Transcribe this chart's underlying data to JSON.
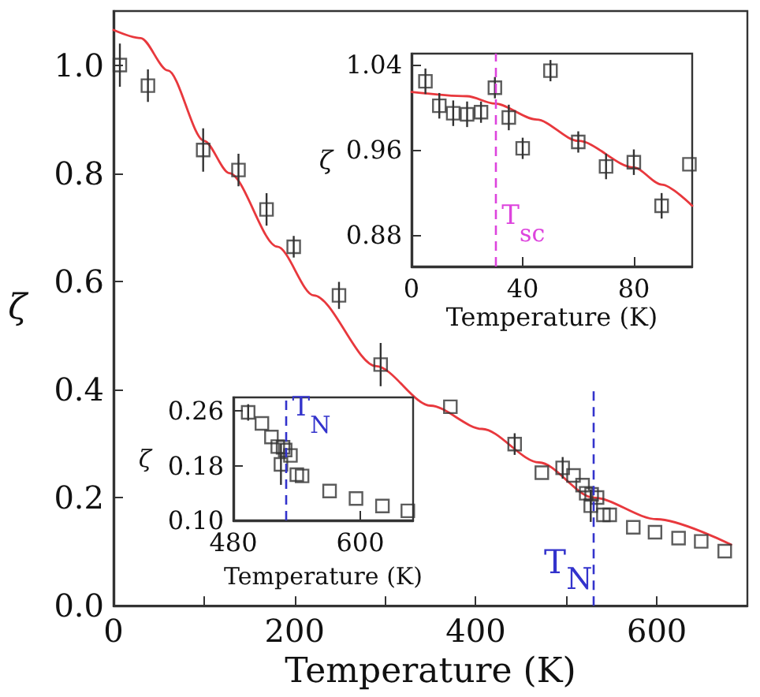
{
  "chart_data": [
    {
      "type": "scatter",
      "xlabel": "Temperature (K)",
      "ylabel": "ζ",
      "marker": "square",
      "grid": false,
      "xlim": [
        0,
        700
      ],
      "xticks": [
        0,
        {
          "value": 100,
          "label": null
        },
        200,
        {
          "value": 300,
          "label": null
        },
        400,
        {
          "value": 500,
          "label": null
        },
        600
      ],
      "ylim": [
        0,
        1.1
      ],
      "yticks": [
        {
          "value": 0,
          "label": "0.0"
        },
        {
          "value": 0.2,
          "label": "0.2"
        },
        {
          "value": 0.4,
          "label": "0.4"
        },
        {
          "value": 0.6,
          "label": "0.6"
        },
        {
          "value": 0.8,
          "label": "0.8"
        },
        {
          "value": 1.0,
          "label": "1.0"
        }
      ],
      "series": [
        {
          "color": "#333333",
          "x": [
            7,
            38,
            99,
            138,
            169,
            199,
            249,
            295,
            372,
            443,
            473,
            496,
            508,
            518,
            522,
            528,
            534,
            527,
            541,
            548,
            574,
            598,
            624,
            649,
            675
          ],
          "values": [
            1.0,
            0.962,
            0.843,
            0.806,
            0.733,
            0.664,
            0.574,
            0.446,
            0.368,
            0.299,
            0.246,
            0.255,
            0.241,
            0.223,
            0.208,
            0.206,
            0.2,
            0.185,
            0.168,
            0.168,
            0.145,
            0.136,
            0.125,
            0.119,
            0.101
          ],
          "errors": [
            0.04,
            0.03,
            0.04,
            0.03,
            0.03,
            0.02,
            0.025,
            0.04,
            null,
            0.02,
            null,
            0.02,
            null,
            null,
            null,
            null,
            null,
            0.03,
            null,
            null,
            null,
            null,
            null,
            null,
            null
          ]
        },
        {
          "type": "line",
          "marker": "none",
          "line_style": "solid",
          "color": "#e8383d",
          "x": [
            0,
            30,
            60,
            100,
            128,
            181,
            221,
            290,
            350,
            407,
            470,
            530,
            600,
            682
          ],
          "values": [
            1.065,
            1.05,
            0.99,
            0.86,
            0.8,
            0.664,
            0.574,
            0.443,
            0.37,
            0.327,
            0.265,
            0.2,
            0.16,
            0.113
          ]
        }
      ],
      "ref_lines": [
        {
          "axis": "x",
          "value": 530,
          "label": "T$_{N}$",
          "color": "#3333cc",
          "line_style": "dashed"
        }
      ]
    },
    {
      "type": "scatter",
      "xlabel": "Temperature (K)",
      "ylabel": "ζ",
      "marker": "square",
      "grid": false,
      "xlim": [
        0,
        101
      ],
      "xticks": [
        0,
        40,
        80
      ],
      "ylim": [
        0.85,
        1.05
      ],
      "yticks": [
        0.88,
        0.96,
        1.04
      ],
      "series": [
        {
          "color": "#333333",
          "x": [
            5,
            10,
            15,
            20,
            25,
            30,
            35,
            40,
            50,
            60,
            70,
            80,
            90,
            100
          ],
          "values": [
            1.024,
            1.001,
            0.994,
            0.993,
            0.995,
            1.018,
            0.99,
            0.961,
            1.034,
            0.967,
            0.944,
            0.948,
            0.907,
            0.946
          ],
          "errors": [
            0.012,
            0.012,
            0.012,
            0.012,
            0.01,
            0.01,
            0.012,
            0.01,
            0.01,
            0.01,
            0.012,
            0.012,
            0.012,
            null
          ]
        },
        {
          "type": "line",
          "marker": "none",
          "line_style": "solid",
          "color": "#e8383d",
          "x": [
            0,
            20,
            30,
            45,
            60,
            80,
            90,
            101
          ],
          "values": [
            1.014,
            1.01,
            1.003,
            0.988,
            0.968,
            0.943,
            0.927,
            0.907
          ]
        }
      ],
      "ref_lines": [
        {
          "axis": "x",
          "value": 30,
          "label": "T$_{sc}$",
          "color": "#dd44dd",
          "line_style": "dashed"
        }
      ]
    },
    {
      "type": "scatter",
      "xlabel": "Temperature (K)",
      "ylabel": "ζ",
      "marker": "square",
      "grid": false,
      "xlim": [
        480,
        650
      ],
      "xticks": [
        480,
        600
      ],
      "ylim": [
        0.1,
        0.28
      ],
      "yticks": [
        {
          "value": 0.1,
          "label": "0.10"
        },
        0.18,
        0.26
      ],
      "series": [
        {
          "color": "#333333",
          "x": [
            494,
            507,
            516,
            522,
            527,
            529,
            534,
            525,
            540,
            545,
            571,
            596,
            621,
            645
          ],
          "values": [
            0.258,
            0.242,
            0.222,
            0.208,
            0.207,
            0.203,
            0.195,
            0.182,
            0.167,
            0.165,
            0.143,
            0.132,
            0.121,
            0.114
          ],
          "errors": [
            0.012,
            null,
            null,
            null,
            null,
            null,
            null,
            0.03,
            null,
            null,
            null,
            null,
            null,
            null
          ]
        }
      ],
      "ref_lines": [
        {
          "axis": "x",
          "value": 530,
          "label": "T$_{N}$",
          "color": "#3333cc",
          "line_style": "dashed"
        }
      ]
    }
  ]
}
